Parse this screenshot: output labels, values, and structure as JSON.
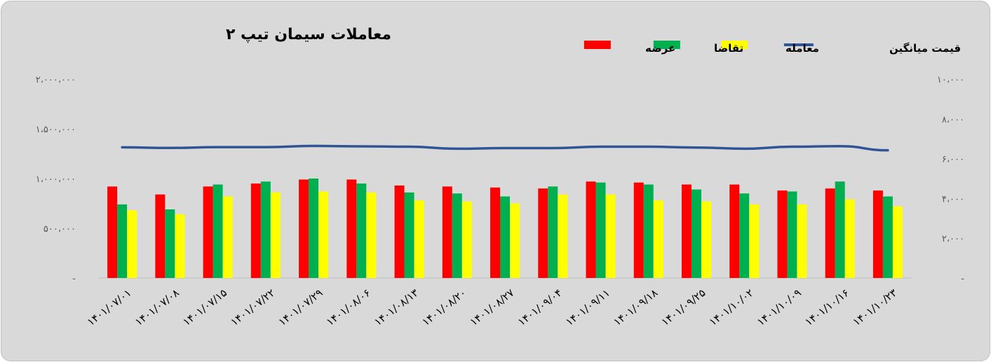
{
  "chart_data": {
    "type": "bar",
    "title": "معاملات سیمان تیپ ۲",
    "categories": [
      "۱۴۰۱/۰۷/۰۱",
      "۱۴۰۱/۰۷/۰۸",
      "۱۴۰۱/۰۷/۱۵",
      "۱۴۰۱/۰۷/۲۲",
      "۱۴۰۱/۰۷/۲۹",
      "۱۴۰۱/۰۸/۰۶",
      "۱۴۰۱/۰۸/۱۳",
      "۱۴۰۱/۰۸/۲۰",
      "۱۴۰۱/۰۸/۲۷",
      "۱۴۰۱/۰۹/۰۴",
      "۱۴۰۱/۰۹/۱۱",
      "۱۴۰۱/۰۹/۱۸",
      "۱۴۰۱/۰۹/۲۵",
      "۱۴۰۱/۱۰/۰۲",
      "۱۴۰۱/۱۰/۰۹",
      "۱۴۰۱/۱۰/۱۶",
      "۱۴۰۱/۱۰/۲۳"
    ],
    "series": [
      {
        "name": "عرضه",
        "color": "#ff0000",
        "axis": "left",
        "values": [
          920000,
          840000,
          920000,
          950000,
          990000,
          990000,
          930000,
          920000,
          910000,
          900000,
          970000,
          960000,
          940000,
          940000,
          880000,
          900000,
          880000
        ]
      },
      {
        "name": "تقاضا",
        "color": "#00b050",
        "axis": "left",
        "values": [
          740000,
          690000,
          940000,
          970000,
          1000000,
          950000,
          860000,
          850000,
          820000,
          920000,
          960000,
          940000,
          890000,
          850000,
          870000,
          970000,
          820000
        ]
      },
      {
        "name": "معامله",
        "color": "#ffff00",
        "axis": "left",
        "values": [
          680000,
          640000,
          820000,
          860000,
          870000,
          860000,
          780000,
          770000,
          750000,
          840000,
          840000,
          780000,
          770000,
          740000,
          740000,
          790000,
          720000
        ]
      },
      {
        "name": "قیمت میانگین",
        "color": "#2f5597",
        "type": "line",
        "axis": "right",
        "values": [
          6570,
          6540,
          6580,
          6580,
          6640,
          6620,
          6600,
          6500,
          6530,
          6530,
          6600,
          6600,
          6560,
          6500,
          6600,
          6630,
          6420
        ]
      }
    ],
    "left_axis": {
      "min": 0,
      "max": 2000000,
      "ticks": [
        "-",
        "۵۰۰،۰۰۰",
        "۱،۰۰۰،۰۰۰",
        "۱،۵۰۰،۰۰۰",
        "۲،۰۰۰،۰۰۰"
      ]
    },
    "right_axis": {
      "min": 0,
      "max": 10000,
      "ticks": [
        "-",
        "۲،۰۰۰",
        "۴،۰۰۰",
        "۶،۰۰۰",
        "۸،۰۰۰",
        "۱۰،۰۰۰"
      ]
    },
    "grid": false,
    "legend_placement": "top-right"
  }
}
